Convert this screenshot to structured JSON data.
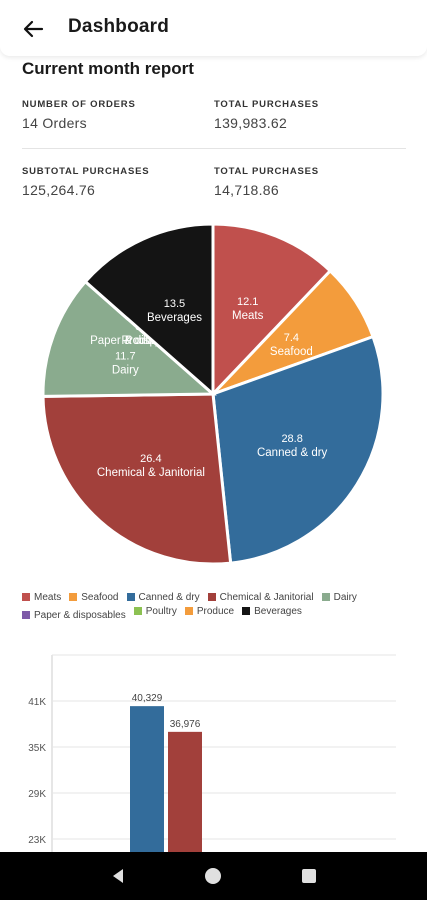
{
  "header": {
    "title": "Dashboard",
    "back_icon": "arrow-left-icon"
  },
  "report": {
    "title": "Current month report",
    "stats": [
      {
        "label": "NUMBER OF ORDERS",
        "value": "14 Orders"
      },
      {
        "label": "TOTAL PURCHASES",
        "value": "139,983.62"
      },
      {
        "label": "SUBTOTAL PURCHASES",
        "value": "125,264.76"
      },
      {
        "label": "TOTAL PURCHASES",
        "value": "14,718.86"
      }
    ]
  },
  "chart_data": [
    {
      "type": "pie",
      "slices": [
        {
          "name": "Meats",
          "value": 12.1,
          "color": "#c0504d"
        },
        {
          "name": "Seafood",
          "value": 7.4,
          "color": "#f39c3c"
        },
        {
          "name": "Canned & dry",
          "value": 28.8,
          "color": "#336c9b"
        },
        {
          "name": "Chemical & Janitorial",
          "value": 26.4,
          "color": "#a2403b"
        },
        {
          "name": "Dairy",
          "value": 11.7,
          "color": "#8aab8e"
        },
        {
          "name": "Paper & disposables",
          "value": 0.0,
          "color": "#7e5aa8"
        },
        {
          "name": "Poultry",
          "value": 0.0,
          "color": "#8cc152"
        },
        {
          "name": "Produce",
          "value": 0.0,
          "color": "#f39c3c"
        },
        {
          "name": "Beverages",
          "value": 13.5,
          "color": "#141414"
        }
      ],
      "legend_position": "bottom"
    },
    {
      "type": "bar",
      "series": [
        {
          "value": 40329,
          "color": "#336c9b"
        },
        {
          "value": 36976,
          "color": "#a2403b"
        }
      ],
      "value_labels": [
        "40,329",
        "36,976"
      ],
      "ytick_labels": [
        "41K",
        "35K",
        "29K",
        "23K"
      ],
      "yticks": [
        41000,
        35000,
        29000,
        23000
      ],
      "ylim": [
        17000,
        47000
      ],
      "grid": true
    }
  ],
  "navbar": {
    "back": "back-triangle-icon",
    "home": "home-circle-icon",
    "recents": "recents-square-icon"
  }
}
